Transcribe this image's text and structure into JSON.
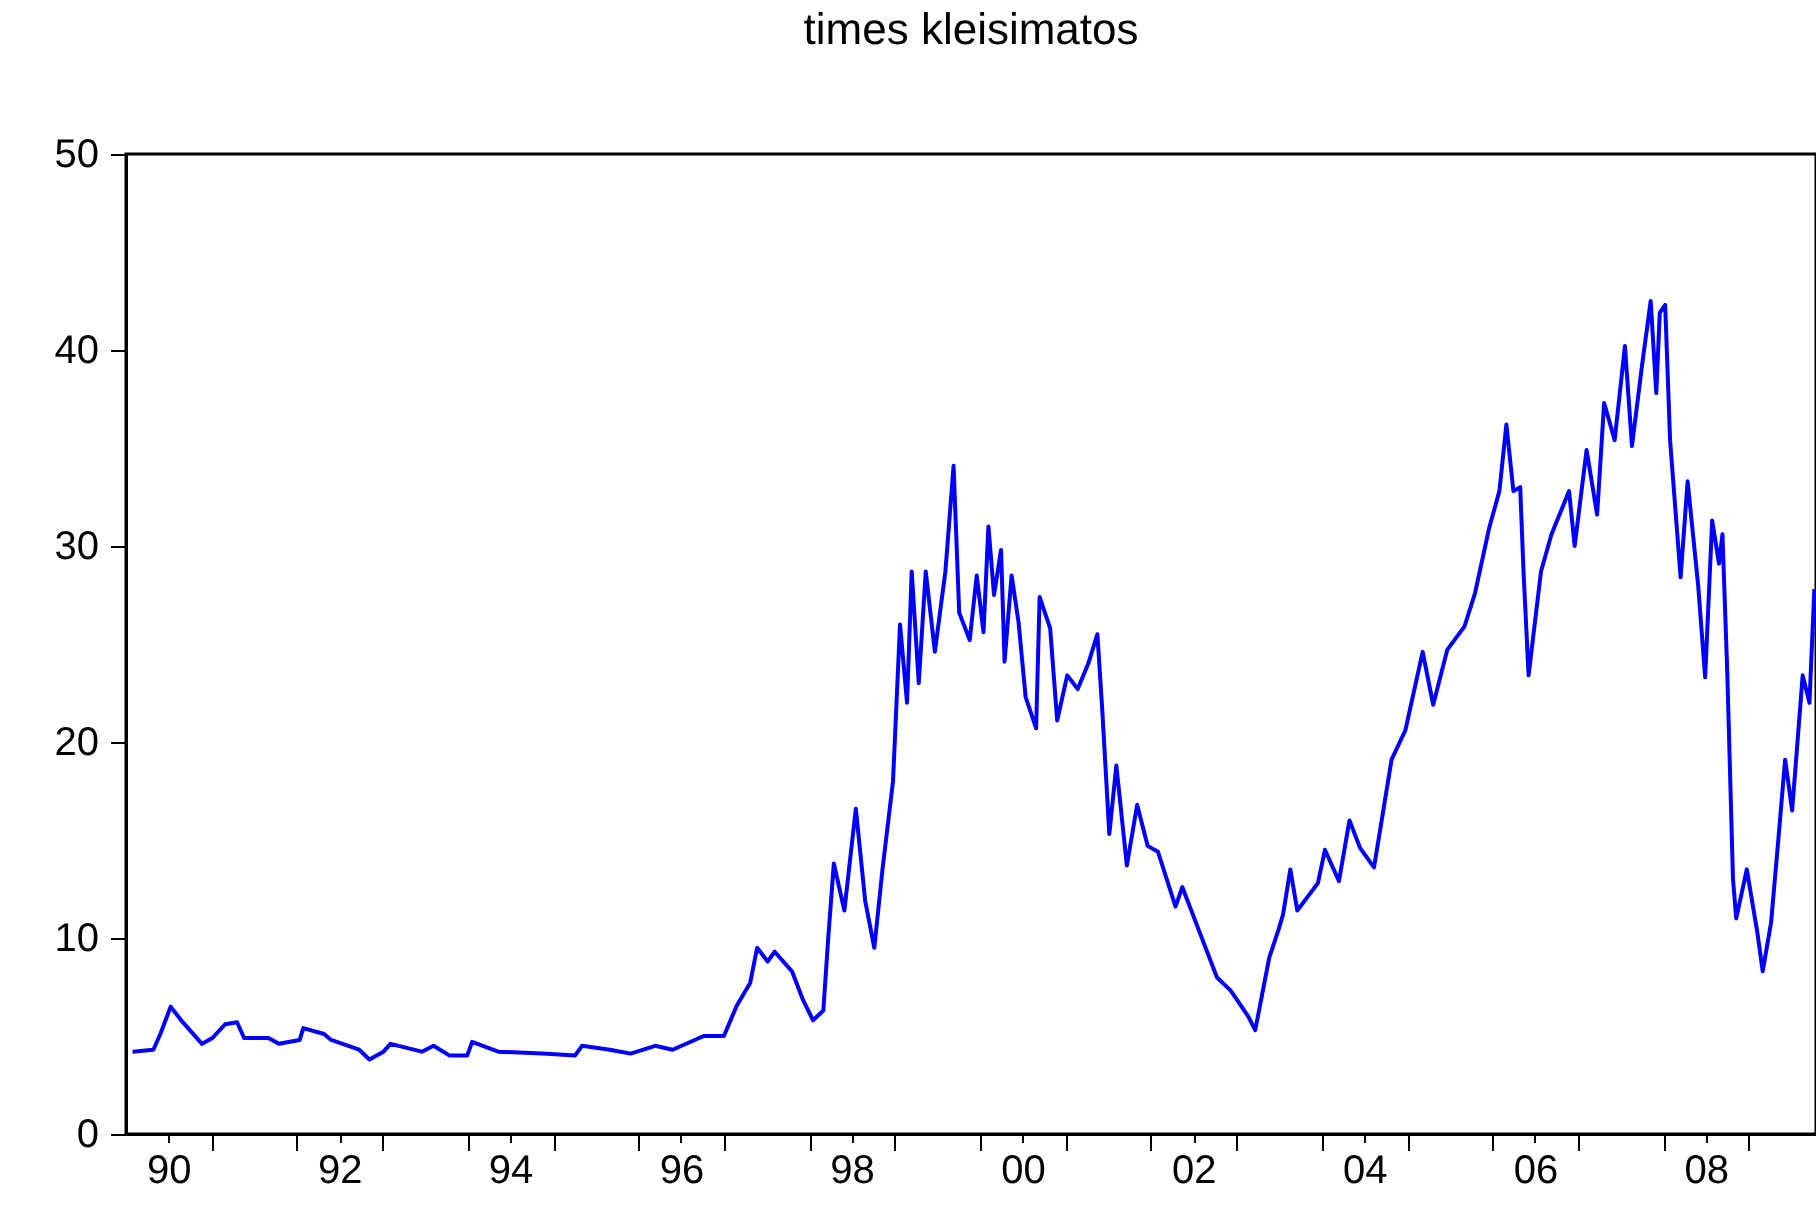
{
  "chart_data": {
    "type": "line",
    "title": "times kleisimatos",
    "x": [
      "1990-01-29",
      "1990-04-28",
      "1990-05-28",
      "1990-07-11",
      "1990-08-25",
      "1990-11-22",
      "1991-01-06",
      "1991-03-01",
      "1991-04-21",
      "1991-05-21",
      "1991-09-02",
      "1991-10-17",
      "1992-01-14",
      "1992-01-29",
      "1992-04-27",
      "1992-05-27",
      "1992-09-24",
      "1992-11-07",
      "1993-01-06",
      "1993-02-05",
      "1993-06-19",
      "1993-08-08",
      "1993-10-16",
      "1993-12-30",
      "1994-01-20",
      "1994-05-12",
      "1994-12-07",
      "1995-04-05",
      "1995-05-05",
      "1995-09-01",
      "1995-11-29",
      "1996-03-13",
      "1996-05-26",
      "1996-10-07",
      "1997-01-01",
      "1997-02-23",
      "1997-04-23",
      "1997-05-23",
      "1997-07-07",
      "1997-08-06",
      "1997-10-19",
      "1997-12-03",
      "1998-01-17",
      "1998-03-02",
      "1998-03-23",
      "1998-04-16",
      "1998-05-31",
      "1998-07-19",
      "1998-08-28",
      "1998-10-06",
      "1998-11-10",
      "1998-12-25",
      "1999-01-24",
      "1999-02-23",
      "1999-03-15",
      "1999-04-14",
      "1999-05-14",
      "1999-06-22",
      "1999-08-06",
      "1999-09-10",
      "1999-10-04",
      "1999-11-18",
      "1999-12-18",
      "2000-01-16",
      "2000-02-06",
      "2000-03-01",
      "2000-03-31",
      "2000-04-15",
      "2000-05-15",
      "2000-06-14",
      "2000-07-14",
      "2000-08-28",
      "2000-09-12",
      "2000-10-27",
      "2000-11-26",
      "2001-01-08",
      "2001-02-22",
      "2001-04-08",
      "2001-05-17",
      "2001-06-07",
      "2001-07-07",
      "2001-08-06",
      "2001-09-20",
      "2001-11-03",
      "2001-12-18",
      "2002-01-31",
      "2002-04-16",
      "2002-05-15",
      "2002-07-28",
      "2002-10-10",
      "2002-12-09",
      "2003-02-21",
      "2003-03-23",
      "2003-05-22",
      "2003-06-30",
      "2003-07-20",
      "2003-08-20",
      "2003-09-19",
      "2003-12-16",
      "2004-01-15",
      "2004-03-15",
      "2004-04-29",
      "2004-06-13",
      "2004-08-12",
      "2004-10-26",
      "2004-12-24",
      "2005-03-08",
      "2005-04-22",
      "2005-06-21",
      "2005-09-03",
      "2005-10-18",
      "2005-12-17",
      "2006-01-30",
      "2006-03-01",
      "2006-03-31",
      "2006-04-29",
      "2006-05-14",
      "2006-06-04",
      "2006-07-27",
      "2006-09-10",
      "2006-11-24",
      "2006-12-18",
      "2007-02-07",
      "2007-03-24",
      "2007-04-23",
      "2007-06-07",
      "2007-07-21",
      "2007-08-20",
      "2007-10-03",
      "2007-11-08",
      "2007-12-02",
      "2007-12-17",
      "2008-01-09",
      "2008-01-30",
      "2008-03-15",
      "2008-04-14",
      "2008-05-29",
      "2008-06-28",
      "2008-07-28",
      "2008-08-26",
      "2008-09-10",
      "2008-10-01",
      "2008-10-25",
      "2008-11-08",
      "2008-12-23",
      "2009-02-06",
      "2009-03-01",
      "2009-04-06",
      "2009-05-06",
      "2009-06-05",
      "2009-07-05",
      "2009-08-19",
      "2009-09-17",
      "2009-10-08"
    ],
    "series": [
      {
        "color": "#0000ff",
        "values": [
          4.2,
          4.3,
          5.1,
          6.5,
          5.8,
          4.6,
          4.9,
          5.6,
          5.7,
          4.9,
          4.9,
          4.6,
          4.8,
          5.4,
          5.1,
          4.8,
          4.3,
          3.8,
          4.2,
          4.6,
          4.2,
          4.5,
          4.0,
          4.0,
          4.7,
          4.2,
          4.1,
          4.0,
          4.5,
          4.3,
          4.1,
          4.5,
          4.3,
          5.0,
          5.0,
          6.5,
          7.7,
          9.5,
          8.8,
          9.3,
          8.3,
          6.9,
          5.8,
          6.3,
          10.0,
          13.8,
          11.4,
          16.6,
          11.9,
          9.5,
          13.5,
          18.0,
          26.0,
          22.0,
          28.7,
          23.0,
          28.7,
          24.6,
          28.7,
          34.1,
          26.6,
          25.2,
          28.5,
          25.6,
          31.0,
          27.5,
          29.8,
          24.1,
          28.5,
          26.1,
          22.3,
          20.7,
          27.4,
          25.8,
          21.1,
          23.4,
          22.7,
          24.0,
          25.5,
          21.6,
          15.3,
          18.8,
          13.7,
          16.8,
          14.7,
          14.4,
          11.6,
          12.6,
          10.3,
          8.0,
          7.3,
          6.0,
          5.3,
          9.0,
          10.4,
          11.2,
          13.5,
          11.4,
          12.8,
          14.5,
          12.9,
          16.0,
          14.6,
          13.6,
          19.1,
          20.6,
          24.6,
          21.9,
          24.7,
          25.9,
          27.6,
          30.9,
          32.8,
          36.2,
          32.8,
          33.0,
          28.5,
          23.4,
          28.7,
          30.6,
          32.8,
          30.0,
          34.9,
          31.6,
          37.3,
          35.4,
          40.2,
          35.1,
          39.3,
          42.5,
          37.8,
          41.9,
          42.3,
          35.4,
          28.4,
          33.3,
          28.0,
          23.3,
          31.3,
          29.1,
          30.6,
          23.4,
          13.0,
          11.0,
          13.5,
          10.3,
          8.3,
          10.8,
          14.9,
          19.1,
          16.5,
          23.4,
          22.0,
          27.8
        ]
      }
    ],
    "xlim": [
      "1990-01-01",
      "2009-10-15"
    ],
    "xticks": [
      {
        "value": "1990-07-01",
        "label": "90"
      },
      {
        "value": "1991-01-01",
        "label": null
      },
      {
        "value": "1992-01-01",
        "label": null
      },
      {
        "value": "1992-07-01",
        "label": "92"
      },
      {
        "value": "1993-01-01",
        "label": null
      },
      {
        "value": "1994-01-01",
        "label": null
      },
      {
        "value": "1994-07-01",
        "label": "94"
      },
      {
        "value": "1995-01-01",
        "label": null
      },
      {
        "value": "1996-01-01",
        "label": null
      },
      {
        "value": "1996-07-01",
        "label": "96"
      },
      {
        "value": "1997-01-01",
        "label": null
      },
      {
        "value": "1998-01-01",
        "label": null
      },
      {
        "value": "1998-07-01",
        "label": "98"
      },
      {
        "value": "1999-01-01",
        "label": null
      },
      {
        "value": "2000-01-01",
        "label": null
      },
      {
        "value": "2000-07-01",
        "label": "00"
      },
      {
        "value": "2001-01-01",
        "label": null
      },
      {
        "value": "2002-01-01",
        "label": null
      },
      {
        "value": "2002-07-01",
        "label": "02"
      },
      {
        "value": "2003-01-01",
        "label": null
      },
      {
        "value": "2004-01-01",
        "label": null
      },
      {
        "value": "2004-07-01",
        "label": "04"
      },
      {
        "value": "2005-01-01",
        "label": null
      },
      {
        "value": "2006-01-01",
        "label": null
      },
      {
        "value": "2006-07-01",
        "label": "06"
      },
      {
        "value": "2007-01-01",
        "label": null
      },
      {
        "value": "2008-01-01",
        "label": null
      },
      {
        "value": "2008-07-01",
        "label": "08"
      },
      {
        "value": "2009-01-01",
        "label": null
      }
    ],
    "ylim": [
      0,
      50
    ],
    "yticks": [
      0,
      10,
      20,
      30,
      40,
      50
    ],
    "grid": false
  }
}
